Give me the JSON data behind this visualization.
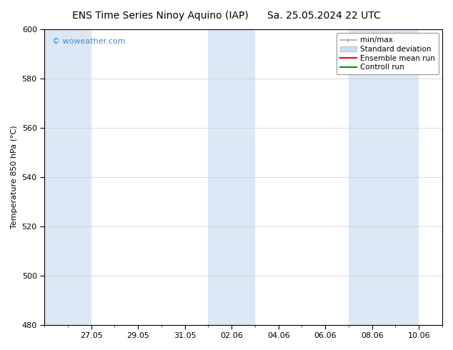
{
  "title_left": "ENS Time Series Ninoy Aquino (IAP)",
  "title_right": "Sa. 25.05.2024 22 UTC",
  "ylabel": "Temperature 850 hPa (°C)",
  "ylim": [
    480,
    600
  ],
  "yticks": [
    480,
    500,
    520,
    540,
    560,
    580,
    600
  ],
  "xlim": [
    0,
    17
  ],
  "xtick_offsets": [
    2,
    4,
    6,
    8,
    10,
    12,
    14,
    16
  ],
  "xtick_labels": [
    "27.05",
    "29.05",
    "31.05",
    "02.06",
    "04.06",
    "06.06",
    "08.06",
    "10.06"
  ],
  "bg_color": "#ffffff",
  "plot_bg_color": "#ffffff",
  "shaded_intervals": [
    [
      0,
      2
    ],
    [
      7,
      9
    ],
    [
      13,
      16
    ]
  ],
  "shaded_color": "#dce8f5",
  "watermark": "© woweather.com",
  "watermark_color": "#4488cc",
  "legend_items": [
    {
      "label": "min/max",
      "type": "minmax"
    },
    {
      "label": "Standard deviation",
      "type": "patch",
      "color": "#ccddef"
    },
    {
      "label": "Ensemble mean run",
      "type": "line",
      "color": "#ff0000"
    },
    {
      "label": "Controll run",
      "type": "line",
      "color": "#009900"
    }
  ],
  "font_size_title": 10,
  "font_size_axis": 8,
  "font_size_tick": 8,
  "font_size_legend": 7.5,
  "font_size_watermark": 8,
  "grid_color": "#cccccc",
  "tick_color": "#000000",
  "spine_color": "#000000",
  "minmax_color": "#aaaaaa"
}
